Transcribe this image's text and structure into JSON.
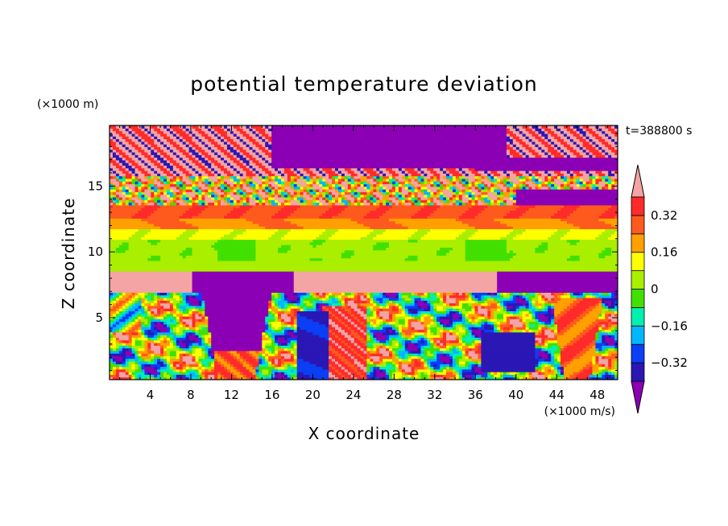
{
  "chart_data": {
    "type": "heatmap",
    "title": "potential temperature deviation",
    "xlabel": "X coordinate",
    "ylabel": "Z coordinate",
    "x_unit": "(×1000 m/s)",
    "y_unit": "(×1000 m)",
    "time_label": "t=388800 s",
    "xlim": [
      0,
      50
    ],
    "ylim": [
      0.3,
      19.6
    ],
    "x_ticks": [
      4,
      8,
      12,
      16,
      20,
      24,
      28,
      32,
      36,
      40,
      44,
      48
    ],
    "x_tick_labels": [
      "4",
      "8",
      "12",
      "16",
      "20",
      "24",
      "28",
      "32",
      "36",
      "40",
      "44",
      "48"
    ],
    "y_ticks": [
      5,
      10,
      15
    ],
    "y_tick_labels": [
      "5",
      "10",
      "15"
    ],
    "colorbar": {
      "levels": [
        -0.4,
        -0.32,
        -0.24,
        -0.16,
        -0.08,
        0,
        0.08,
        0.16,
        0.24,
        0.32,
        0.4
      ],
      "labels": [
        "0.32",
        "0.16",
        "0",
        "−0.16",
        "−0.32"
      ],
      "label_values": [
        0.32,
        0.16,
        0,
        -0.16,
        -0.32
      ],
      "colors": [
        "#8b00b4",
        "#2a17b4",
        "#0a3ff5",
        "#00b7ff",
        "#00f0b0",
        "#42e000",
        "#aaee00",
        "#ffff00",
        "#ffa000",
        "#ff5a1e",
        "#ff2a2a",
        "#f4a4a4"
      ],
      "extend": "both"
    }
  }
}
